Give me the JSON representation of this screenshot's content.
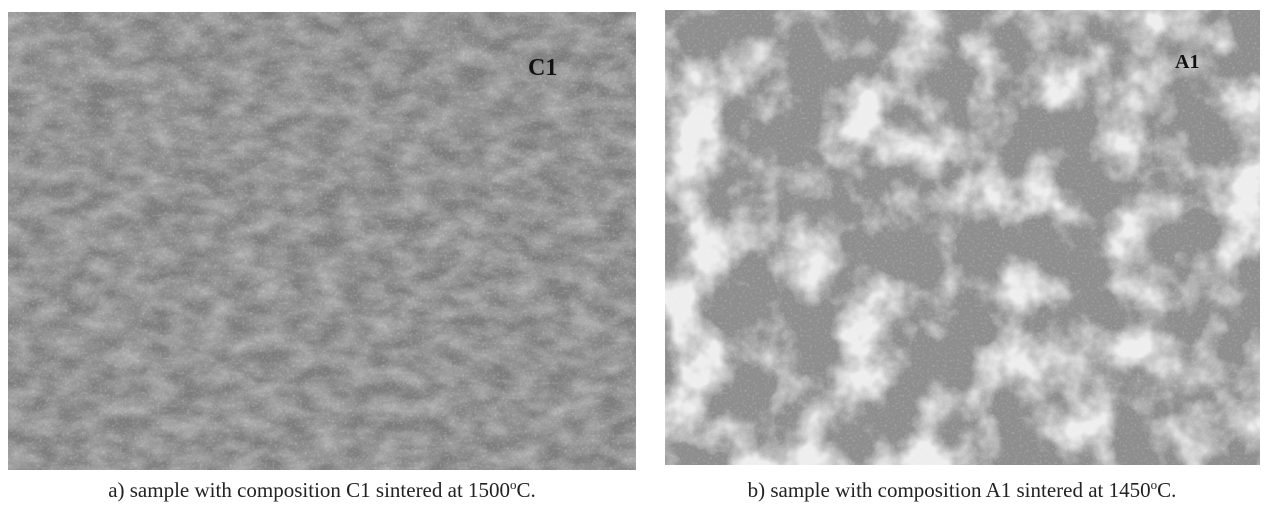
{
  "panels": [
    {
      "label": "C1",
      "caption": {
        "text": "a) sample with composition C1 sintered at 1500",
        "sup": "o",
        "tail": "C."
      }
    },
    {
      "label": "A1",
      "caption": {
        "text": "b) sample with composition A1 sintered at 1450",
        "sup": "o",
        "tail": "C."
      }
    }
  ]
}
